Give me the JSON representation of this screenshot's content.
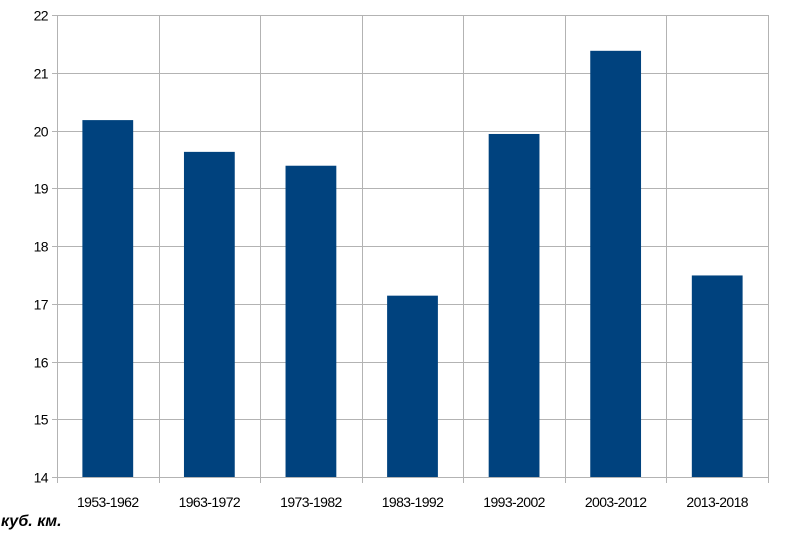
{
  "chart_data": {
    "type": "bar",
    "categories": [
      "1953-1962",
      "1963-1972",
      "1973-1982",
      "1983-1992",
      "1993-2002",
      "2003-2012",
      "2013-2018"
    ],
    "values": [
      20.18,
      19.63,
      19.39,
      17.14,
      19.94,
      21.38,
      17.49
    ],
    "ylabel": "куб. км.",
    "xlabel": "",
    "ylim": [
      14,
      22
    ],
    "yticks": [
      14,
      15,
      16,
      17,
      18,
      19,
      20,
      21,
      22
    ],
    "grid": true,
    "legend": "none",
    "bar_color": "#00427E",
    "grid_color": "#B3B3B3"
  }
}
